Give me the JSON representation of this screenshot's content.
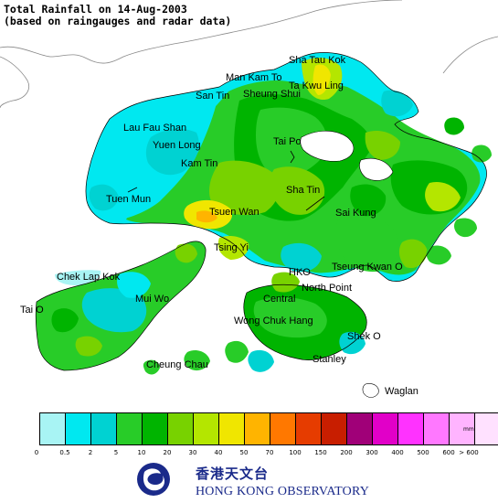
{
  "title_line1": "Total Rainfall on 14-Aug-2003",
  "title_line2": "(based on raingauges and radar data)",
  "places": [
    {
      "id": "sha-tau-kok",
      "label": "Sha Tau Kok"
    },
    {
      "id": "man-kam-to",
      "label": "Man Kam To"
    },
    {
      "id": "ta-kwu-ling",
      "label": "Ta Kwu Ling"
    },
    {
      "id": "san-tin",
      "label": "San Tin"
    },
    {
      "id": "sheung-shui",
      "label": "Sheung Shui"
    },
    {
      "id": "lau-fau-shan",
      "label": "Lau Fau Shan"
    },
    {
      "id": "yuen-long",
      "label": "Yuen Long"
    },
    {
      "id": "tai-po",
      "label": "Tai Po"
    },
    {
      "id": "kam-tin",
      "label": "Kam Tin"
    },
    {
      "id": "tuen-mun",
      "label": "Tuen Mun"
    },
    {
      "id": "sha-tin",
      "label": "Sha Tin"
    },
    {
      "id": "tsuen-wan",
      "label": "Tsuen Wan"
    },
    {
      "id": "sai-kung",
      "label": "Sai Kung"
    },
    {
      "id": "tsing-yi",
      "label": "Tsing Yi"
    },
    {
      "id": "chek-lap-kok",
      "label": "Chek Lap Kok"
    },
    {
      "id": "hko",
      "label": "HKO"
    },
    {
      "id": "tseung-kwan-o",
      "label": "Tseung Kwan O"
    },
    {
      "id": "tai-o",
      "label": "Tai O"
    },
    {
      "id": "mui-wo",
      "label": "Mui Wo"
    },
    {
      "id": "north-point",
      "label": "North Point"
    },
    {
      "id": "central",
      "label": "Central"
    },
    {
      "id": "wong-chuk-hang",
      "label": "Wong Chuk Hang"
    },
    {
      "id": "shek-o",
      "label": "Shek O"
    },
    {
      "id": "cheung-chau",
      "label": "Cheung Chau"
    },
    {
      "id": "stanley",
      "label": "Stanley"
    },
    {
      "id": "waglan",
      "label": "Waglan"
    }
  ],
  "legend": {
    "unit": "mm",
    "ticks": [
      "0",
      "0.5",
      "2",
      "5",
      "10",
      "20",
      "30",
      "40",
      "50",
      "70",
      "100",
      "150",
      "200",
      "300",
      "400",
      "500",
      "600",
      "> 600"
    ],
    "colors": [
      "#ffffff",
      "#a8f4f4",
      "#00e8f0",
      "#00d2d2",
      "#28cc28",
      "#00b400",
      "#78d200",
      "#b4e600",
      "#f0e600",
      "#ffb400",
      "#ff7800",
      "#e63c00",
      "#c81e00",
      "#a00078",
      "#e100c8",
      "#ff32ff",
      "#ff78ff",
      "#ffb4ff",
      "#ffe1ff"
    ]
  },
  "logo": {
    "chinese": "香港天文台",
    "english": "HONG KONG OBSERVATORY"
  }
}
